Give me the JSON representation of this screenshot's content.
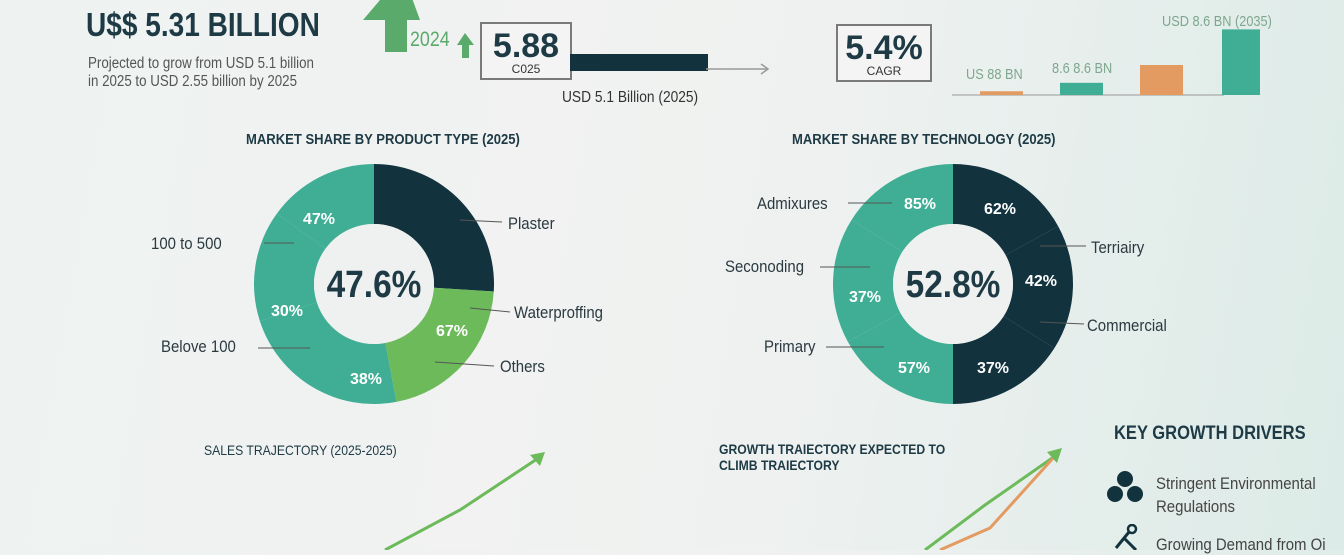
{
  "header": {
    "headline": "U$$ 5.31 BILLION",
    "subtitle_line1": "Projected to  grow from USD 5.1 billion",
    "subtitle_line2": "in 2025 to USD 2.55 billion by 2025",
    "arrow_year": "2024",
    "box1_value": "5.88",
    "box1_caption": "C025",
    "bar_caption": "USD 5.1 Billion (2025)",
    "box2_value": "5.4%",
    "box2_caption": "CAGR"
  },
  "colors": {
    "dark": "#12323d",
    "teal": "#3fae94",
    "green": "#6cba5a",
    "orange": "#e39b62",
    "text": "#1d3a45"
  },
  "chart_data": [
    {
      "type": "bar",
      "title": "",
      "bar_labels": [
        "US 88 BN",
        "8.6 8.6 BN",
        "",
        "USD 8.6 BN (2035)"
      ],
      "values": [
        0.4,
        1.3,
        3.2,
        7.0
      ],
      "bar_colors": [
        "#e39b62",
        "#3fae94",
        "#e39b62",
        "#3fae94"
      ]
    },
    {
      "type": "pie",
      "title": "MARKET SHARE BY PRODUCT TYPE (2025)",
      "center_label": "47.6%",
      "slices": [
        {
          "label": "Plaster",
          "value_label": "",
          "share": 26,
          "color": "#12323d"
        },
        {
          "label": "Waterproffing",
          "value_label": "67%",
          "share": 21,
          "color": "#6cba5a"
        },
        {
          "label": "Others",
          "value_label": "",
          "share": 0,
          "color": "#6cba5a"
        },
        {
          "label": "Belove 100",
          "value_label": "38%",
          "share": 23,
          "color": "#3fae94"
        },
        {
          "label": "100 to 500",
          "value_label": "30%",
          "share": 15,
          "color": "#3fae94"
        },
        {
          "label": "",
          "value_label": "47%",
          "share": 15,
          "color": "#3fae94"
        }
      ]
    },
    {
      "type": "pie",
      "title": "MARKET SHARE BY TECHNOLOGY (2025)",
      "center_label": "52.8%",
      "slices": [
        {
          "label": "Terriairy",
          "value_label": "62%",
          "share": 17,
          "color": "#12323d"
        },
        {
          "label": "Commercial",
          "value_label": "42%",
          "share": 17,
          "color": "#12323d"
        },
        {
          "label": "",
          "value_label": "37%",
          "share": 16,
          "color": "#12323d"
        },
        {
          "label": "Primary",
          "value_label": "57%",
          "share": 17,
          "color": "#3fae94"
        },
        {
          "label": "Seconoding",
          "value_label": "37%",
          "share": 17,
          "color": "#3fae94"
        },
        {
          "label": "Admixures",
          "value_label": "85%",
          "share": 16,
          "color": "#3fae94"
        }
      ]
    },
    {
      "type": "line",
      "title": "SALES TRAJECTORY (2025-2025)",
      "series": [
        {
          "values": [
            0,
            1,
            2,
            3
          ],
          "color": "#6cba5a"
        }
      ]
    },
    {
      "type": "line",
      "title": "GROWTH TRAIECTORY EXPECTED TO CLIMB TRAIECTORY",
      "series": [
        {
          "values": [
            0,
            2.2,
            3.8,
            5
          ],
          "color": "#6cba5a"
        },
        {
          "values": [
            0,
            1.2,
            2.3,
            5
          ],
          "color": "#e39b62"
        }
      ]
    }
  ],
  "drivers": {
    "title": "KEY GROWTH DRIVERS",
    "items": [
      {
        "icon": "droplets-icon",
        "line1": "Stringent Environmental",
        "line2": "Regulations"
      },
      {
        "icon": "pipeline-icon",
        "line1": "Growing Demand from Oi",
        "line2": ""
      }
    ]
  }
}
